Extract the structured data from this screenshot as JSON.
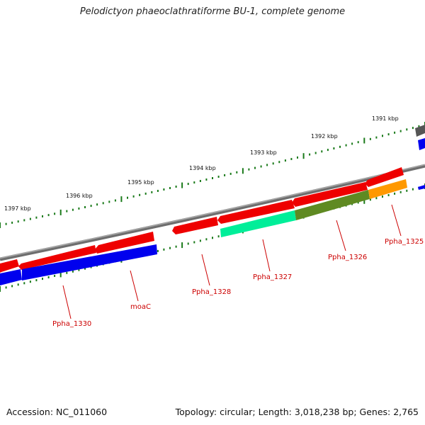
{
  "title": "Pelodictyon phaeoclathratiforme BU-1, complete genome",
  "footer": {
    "accession": "Accession: NC_011060",
    "summary": "Topology: circular; Length: 3,018,238 bp; Genes: 2,765"
  },
  "colors": {
    "backbone": "#7a7a7a",
    "forward_gene": "#ee0000",
    "reverse_gene": "#0000ee",
    "tick": "#1a7a1a",
    "gene_label": "#cc0000",
    "ppha_1327": "#00ee99",
    "ppha_1326": "#5f8a22",
    "ppha_1325": "#ff9900",
    "grey_gene": "#555555"
  },
  "scale": {
    "unit": "kbp",
    "ticks": [
      {
        "label": "1391 kbp"
      },
      {
        "label": "1392 kbp"
      },
      {
        "label": "1393 kbp"
      },
      {
        "label": "1394 kbp"
      },
      {
        "label": "1395 kbp"
      },
      {
        "label": "1396 kbp"
      },
      {
        "label": "1397 kbp"
      }
    ]
  },
  "gene_labels": [
    {
      "name": "Ppha_1325"
    },
    {
      "name": "Ppha_1326"
    },
    {
      "name": "Ppha_1327"
    },
    {
      "name": "Ppha_1328"
    },
    {
      "name": "moaC"
    },
    {
      "name": "Ppha_1330"
    }
  ]
}
